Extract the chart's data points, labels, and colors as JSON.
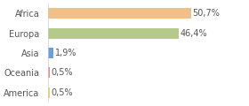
{
  "categories": [
    "Africa",
    "Europa",
    "Asia",
    "Oceania",
    "America"
  ],
  "values": [
    50.7,
    46.4,
    1.9,
    0.5,
    0.5
  ],
  "labels": [
    "50,7%",
    "46,4%",
    "1,9%",
    "0,5%",
    "0,5%"
  ],
  "bar_colors": [
    "#f0c08a",
    "#b5c98a",
    "#6a9fd8",
    "#e88a8a",
    "#f0d060"
  ],
  "background_color": "#ffffff",
  "text_color": "#555555",
  "label_fontsize": 7,
  "ylabel_fontsize": 7,
  "xlim": 70
}
